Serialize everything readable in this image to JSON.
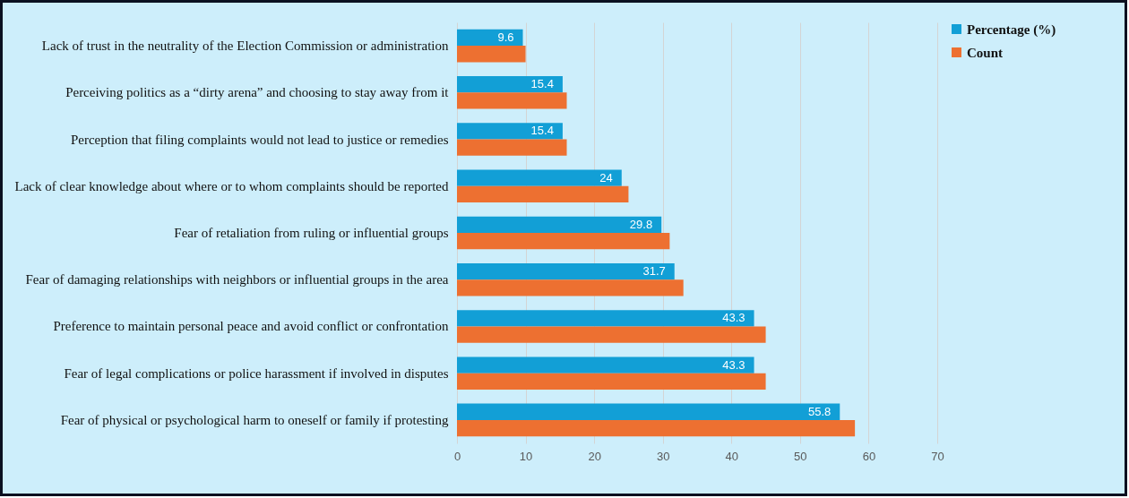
{
  "chart_data": {
    "type": "bar",
    "orientation": "horizontal",
    "categories": [
      "Lack of trust in the neutrality of the Election Commission or administration",
      "Perceiving politics as a “dirty arena” and choosing to stay away from it",
      "Perception that filing complaints would not lead to justice or remedies",
      "Lack of clear knowledge about where or to whom complaints should be reported",
      "Fear of retaliation from ruling or influential groups",
      "Fear of damaging relationships with neighbors or influential groups in the area",
      "Preference to maintain personal peace and avoid conflict or confrontation",
      "Fear of legal complications or police harassment if involved in disputes",
      "Fear of physical or psychological harm to oneself or family if protesting"
    ],
    "series": [
      {
        "name": "Percentage (%)",
        "color": "#129fd6",
        "values": [
          9.6,
          15.4,
          15.4,
          24,
          29.8,
          31.7,
          43.3,
          43.3,
          55.8
        ],
        "value_labels": [
          "9.6",
          "15.4",
          "15.4",
          "24",
          "29.8",
          "31.7",
          "43.3",
          "43.3",
          "55.8"
        ]
      },
      {
        "name": "Count",
        "color": "#ed7031",
        "values": [
          10,
          16,
          16,
          25,
          31,
          33,
          45,
          45,
          58
        ]
      }
    ],
    "xlim": [
      0,
      70
    ],
    "xticks": [
      0,
      10,
      20,
      30,
      40,
      50,
      60,
      70
    ],
    "grid": "x",
    "legend": "right"
  }
}
